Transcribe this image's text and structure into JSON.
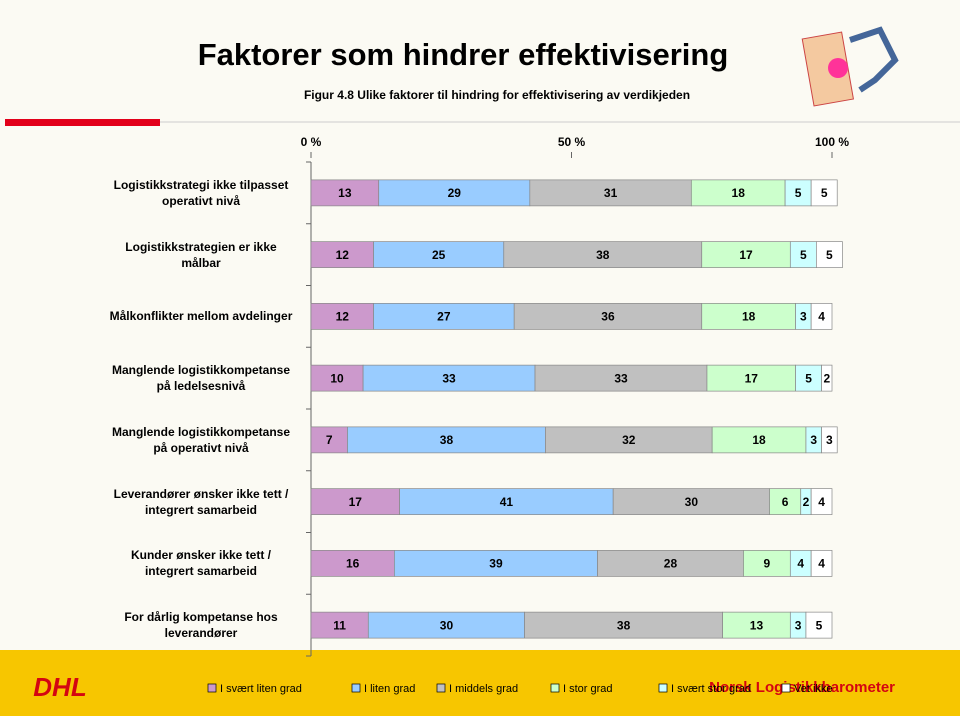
{
  "chart_data": {
    "type": "stacked-bar-horizontal",
    "title": "Faktorer som hindrer effektivisering",
    "subtitle": "Figur 4.8 Ulike faktorer til hindring for effektivisering av verdikjeden",
    "categories": [
      "Logistikkstrategi ikke tilpasset operativt nivå",
      "Logistikkstrategien er ikke målbar",
      "Målkonflikter mellom avdelinger",
      "Manglende logistikkompetanse på ledelsesnivå",
      "Manglende logistikkompetanse på operativt nivå",
      "Leverandører ønsker ikke tett / integrert samarbeid",
      "Kunder ønsker ikke tett / integrert samarbeid",
      "For dårlig kompetanse hos leverandører"
    ],
    "series": [
      {
        "name": "I svært liten grad",
        "color": "#cc99cc",
        "values": [
          13,
          12,
          12,
          10,
          7,
          17,
          16,
          11
        ]
      },
      {
        "name": "I liten grad",
        "color": "#99ccff",
        "values": [
          29,
          25,
          27,
          33,
          38,
          41,
          39,
          30
        ]
      },
      {
        "name": "I middels grad",
        "color": "#c0c0c0",
        "values": [
          31,
          38,
          36,
          33,
          32,
          30,
          28,
          38
        ]
      },
      {
        "name": "I stor grad",
        "color": "#ccffcc",
        "values": [
          18,
          17,
          18,
          17,
          18,
          6,
          9,
          13
        ]
      },
      {
        "name": "I svært stor grad",
        "color": "#ccffff",
        "values": [
          5,
          5,
          3,
          5,
          3,
          2,
          4,
          3
        ]
      },
      {
        "name": "Vet ikke",
        "color": "#ffffff",
        "values": [
          5,
          5,
          4,
          2,
          3,
          4,
          4,
          5
        ]
      }
    ],
    "xlim": [
      0,
      100
    ],
    "xticks": [
      {
        "value": 0,
        "label": "0 %"
      },
      {
        "value": 50,
        "label": "50 %"
      },
      {
        "value": 100,
        "label": "100 %"
      }
    ],
    "footer": {
      "logo": "DHL",
      "brand": "Norsk Logistikkbarometer"
    }
  }
}
